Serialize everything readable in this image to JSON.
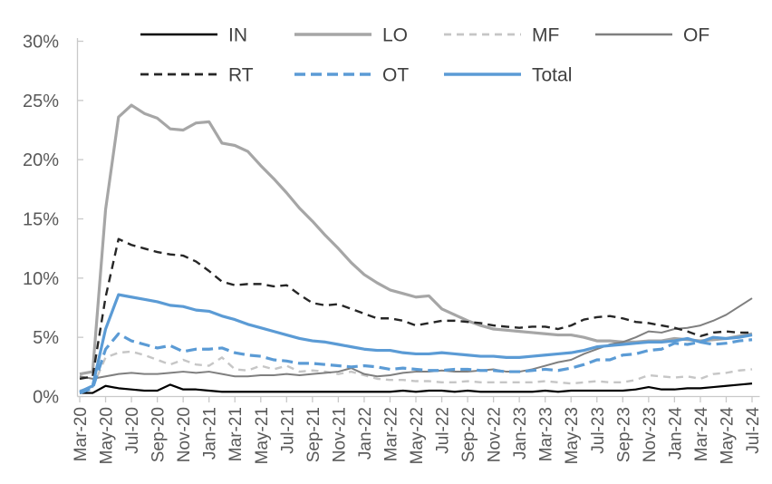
{
  "chart_data": {
    "type": "line",
    "title": "",
    "xlabel": "",
    "ylabel": "",
    "ylim": [
      0,
      30
    ],
    "grid": "off",
    "legend_position": "top",
    "axis_color": "#c9c9c9",
    "tick_label_color": "#595959",
    "legend_text_color": "#404040",
    "y_tick_labels": [
      "0%",
      "5%",
      "10%",
      "15%",
      "20%",
      "25%",
      "30%"
    ],
    "y_tick_values": [
      0,
      5,
      10,
      15,
      20,
      25,
      30
    ],
    "x": [
      "Mar-20",
      "Apr-20",
      "May-20",
      "Jun-20",
      "Jul-20",
      "Aug-20",
      "Sep-20",
      "Oct-20",
      "Nov-20",
      "Dec-20",
      "Jan-21",
      "Feb-21",
      "Mar-21",
      "Apr-21",
      "May-21",
      "Jun-21",
      "Jul-21",
      "Aug-21",
      "Sep-21",
      "Oct-21",
      "Nov-21",
      "Dec-21",
      "Jan-22",
      "Feb-22",
      "Mar-22",
      "Apr-22",
      "May-22",
      "Jun-22",
      "Jul-22",
      "Aug-22",
      "Sep-22",
      "Oct-22",
      "Nov-22",
      "Dec-22",
      "Jan-23",
      "Feb-23",
      "Mar-23",
      "Apr-23",
      "May-23",
      "Jun-23",
      "Jul-23",
      "Aug-23",
      "Sep-23",
      "Oct-23",
      "Nov-23",
      "Dec-23",
      "Jan-24",
      "Feb-24",
      "Mar-24",
      "Apr-24",
      "May-24",
      "Jun-24",
      "Jul-24"
    ],
    "x_tick_labels": [
      "Mar-20",
      "May-20",
      "Jul-20",
      "Sep-20",
      "Nov-20",
      "Jan-21",
      "Mar-21",
      "May-21",
      "Jul-21",
      "Sep-21",
      "Nov-21",
      "Jan-22",
      "Mar-22",
      "May-22",
      "Jul-22",
      "Sep-22",
      "Nov-22",
      "Jan-23",
      "Mar-23",
      "May-23",
      "Jul-23",
      "Sep-23",
      "Nov-23",
      "Jan-24",
      "Mar-24",
      "May-24",
      "Jul-24"
    ],
    "legend_rows": [
      [
        "IN",
        "LO",
        "MF",
        "OF"
      ],
      [
        "RT",
        "OT",
        "Total"
      ]
    ],
    "series": [
      {
        "name": "IN",
        "color": "#000000",
        "style": "solid",
        "dash": "",
        "width": 2.2,
        "values": [
          0.3,
          0.3,
          0.9,
          0.7,
          0.6,
          0.5,
          0.5,
          1.0,
          0.6,
          0.6,
          0.5,
          0.4,
          0.4,
          0.4,
          0.4,
          0.4,
          0.4,
          0.4,
          0.4,
          0.4,
          0.4,
          0.4,
          0.4,
          0.4,
          0.4,
          0.5,
          0.4,
          0.5,
          0.5,
          0.4,
          0.5,
          0.4,
          0.4,
          0.4,
          0.4,
          0.4,
          0.5,
          0.4,
          0.5,
          0.5,
          0.5,
          0.5,
          0.5,
          0.6,
          0.8,
          0.6,
          0.6,
          0.7,
          0.7,
          0.8,
          0.9,
          1.0,
          1.1
        ]
      },
      {
        "name": "LO",
        "color": "#a6a6a6",
        "style": "solid",
        "dash": "",
        "width": 3.2,
        "values": [
          1.9,
          2.1,
          15.8,
          23.6,
          24.6,
          23.9,
          23.5,
          22.6,
          22.5,
          23.1,
          23.2,
          21.4,
          21.2,
          20.7,
          19.5,
          18.4,
          17.2,
          15.9,
          14.8,
          13.6,
          12.5,
          11.3,
          10.3,
          9.6,
          9.0,
          8.7,
          8.4,
          8.5,
          7.4,
          6.9,
          6.4,
          6.0,
          5.7,
          5.6,
          5.5,
          5.4,
          5.3,
          5.2,
          5.2,
          5.0,
          4.7,
          4.7,
          4.6,
          4.6,
          4.7,
          4.7,
          4.9,
          4.8,
          4.7,
          4.8,
          4.9,
          5.1,
          5.3
        ]
      },
      {
        "name": "MF",
        "color": "#c6c6c6",
        "style": "dashed",
        "dash": "8 6",
        "width": 2.4,
        "values": [
          0.5,
          0.8,
          3.3,
          3.7,
          3.8,
          3.5,
          3.1,
          2.7,
          3.1,
          2.7,
          2.6,
          3.3,
          2.3,
          2.2,
          2.6,
          2.3,
          2.6,
          2.1,
          2.2,
          2.1,
          1.9,
          2.1,
          1.8,
          1.5,
          1.4,
          1.4,
          1.3,
          1.3,
          1.2,
          1.2,
          1.3,
          1.2,
          1.2,
          1.2,
          1.2,
          1.2,
          1.3,
          1.2,
          1.1,
          1.2,
          1.3,
          1.2,
          1.2,
          1.4,
          1.8,
          1.7,
          1.6,
          1.7,
          1.5,
          1.9,
          2.0,
          2.2,
          2.3
        ]
      },
      {
        "name": "OF",
        "color": "#7f7f7f",
        "style": "solid",
        "dash": "",
        "width": 2.0,
        "values": [
          1.7,
          1.5,
          1.7,
          1.9,
          2.0,
          1.9,
          1.9,
          2.0,
          2.1,
          2.0,
          2.1,
          1.9,
          1.7,
          1.7,
          1.8,
          1.8,
          1.9,
          1.8,
          1.9,
          2.0,
          2.1,
          2.4,
          1.9,
          1.7,
          1.8,
          2.0,
          2.1,
          2.1,
          2.2,
          2.1,
          2.1,
          2.2,
          2.3,
          2.1,
          2.1,
          2.3,
          2.6,
          2.9,
          3.1,
          3.6,
          4.0,
          4.4,
          4.6,
          5.0,
          5.5,
          5.4,
          5.7,
          5.8,
          6.0,
          6.4,
          6.9,
          7.6,
          8.3
        ]
      },
      {
        "name": "RT",
        "color": "#262626",
        "style": "dashed",
        "dash": "9 6",
        "width": 2.4,
        "values": [
          1.5,
          1.7,
          8.4,
          13.3,
          12.8,
          12.5,
          12.2,
          12.0,
          11.9,
          11.4,
          10.6,
          9.7,
          9.4,
          9.5,
          9.5,
          9.3,
          9.4,
          8.6,
          7.9,
          7.7,
          7.8,
          7.4,
          7.0,
          6.6,
          6.6,
          6.4,
          6.0,
          6.2,
          6.4,
          6.4,
          6.3,
          6.2,
          6.0,
          5.9,
          5.8,
          5.9,
          5.9,
          5.7,
          6.0,
          6.5,
          6.7,
          6.8,
          6.6,
          6.3,
          6.2,
          6.0,
          5.8,
          5.5,
          5.1,
          5.4,
          5.5,
          5.4,
          5.4
        ]
      },
      {
        "name": "OT",
        "color": "#5b9bd5",
        "style": "dashed",
        "dash": "12 6",
        "width": 3.2,
        "values": [
          0.3,
          0.7,
          4.0,
          5.3,
          4.7,
          4.4,
          4.1,
          4.3,
          3.8,
          4.0,
          4.0,
          4.1,
          3.7,
          3.5,
          3.4,
          3.1,
          3.0,
          2.8,
          2.8,
          2.7,
          2.6,
          2.5,
          2.6,
          2.5,
          2.3,
          2.4,
          2.3,
          2.2,
          2.2,
          2.3,
          2.3,
          2.2,
          2.2,
          2.1,
          2.1,
          2.2,
          2.3,
          2.2,
          2.4,
          2.7,
          3.1,
          3.1,
          3.5,
          3.6,
          3.9,
          4.0,
          4.5,
          4.4,
          4.6,
          4.4,
          4.5,
          4.7,
          4.8
        ]
      },
      {
        "name": "Total",
        "color": "#5b9bd5",
        "style": "solid",
        "dash": "",
        "width": 3.2,
        "values": [
          0.4,
          0.9,
          5.7,
          8.6,
          8.4,
          8.2,
          8.0,
          7.7,
          7.6,
          7.3,
          7.2,
          6.8,
          6.5,
          6.1,
          5.8,
          5.5,
          5.2,
          4.9,
          4.7,
          4.6,
          4.4,
          4.2,
          4.0,
          3.9,
          3.9,
          3.7,
          3.6,
          3.6,
          3.7,
          3.6,
          3.5,
          3.4,
          3.4,
          3.3,
          3.3,
          3.4,
          3.5,
          3.6,
          3.7,
          3.9,
          4.2,
          4.3,
          4.4,
          4.5,
          4.6,
          4.6,
          4.7,
          4.9,
          4.6,
          5.0,
          4.9,
          5.0,
          5.2
        ]
      }
    ]
  }
}
